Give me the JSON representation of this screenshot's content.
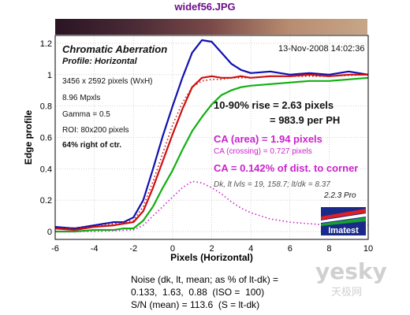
{
  "file_title": "widef56.JPG",
  "chart_data": {
    "type": "line",
    "title": "Chromatic Aberration",
    "subtitle": "Profile: Horizontal",
    "timestamp": "13-Nov-2008 14:02:36",
    "xlabel": "Pixels (Horizontal)",
    "ylabel": "Edge profile",
    "xlim": [
      -6,
      10
    ],
    "ylim": [
      -0.05,
      1.25
    ],
    "xticks": [
      -6,
      -4,
      -2,
      0,
      2,
      4,
      6,
      8,
      10
    ],
    "yticks": [
      0,
      0.2,
      0.4,
      0.6,
      0.8,
      1,
      1.2
    ],
    "xtick_labels": [
      "-6",
      "-4",
      "-2",
      "0",
      "2",
      "4",
      "6",
      "8",
      "10"
    ],
    "ytick_labels": [
      "0",
      "0.2",
      "0.4",
      "0.6",
      "0.8",
      "1",
      "1.2"
    ],
    "grid": true,
    "series": [
      {
        "color": "#1010b0",
        "style": "solid",
        "x": [
          -6,
          -5,
          -4,
          -3,
          -2.5,
          -2,
          -1.5,
          -1,
          -0.5,
          0,
          0.5,
          1,
          1.5,
          2,
          2.5,
          3,
          3.5,
          4,
          5,
          6,
          7,
          8,
          9,
          10
        ],
        "y": [
          0.03,
          0.02,
          0.04,
          0.06,
          0.06,
          0.09,
          0.2,
          0.4,
          0.61,
          0.8,
          0.98,
          1.14,
          1.22,
          1.21,
          1.14,
          1.07,
          1.03,
          1.01,
          1.02,
          1.0,
          1.01,
          1.0,
          1.02,
          1.0
        ]
      },
      {
        "color": "#cc1010",
        "style": "solid",
        "x": [
          -6,
          -5,
          -4,
          -3,
          -2.5,
          -2,
          -1.5,
          -1,
          -0.5,
          0,
          0.5,
          1,
          1.5,
          2,
          2.5,
          3,
          3.5,
          4,
          5,
          6,
          7,
          8,
          9,
          10
        ],
        "y": [
          0.02,
          0.01,
          0.03,
          0.04,
          0.05,
          0.06,
          0.13,
          0.28,
          0.45,
          0.62,
          0.78,
          0.92,
          0.98,
          0.99,
          0.98,
          0.98,
          0.99,
          0.98,
          0.99,
          0.99,
          1.0,
          0.99,
          1.0,
          1.0
        ]
      },
      {
        "color": "#10b010",
        "style": "solid",
        "x": [
          -6,
          -5,
          -4,
          -3,
          -2.5,
          -2,
          -1.5,
          -1,
          -0.5,
          0,
          0.5,
          1,
          1.5,
          2,
          2.5,
          3,
          3.5,
          4,
          5,
          6,
          7,
          8,
          9,
          10
        ],
        "y": [
          0.0,
          0.0,
          0.01,
          0.01,
          0.02,
          0.02,
          0.07,
          0.16,
          0.28,
          0.39,
          0.52,
          0.64,
          0.73,
          0.81,
          0.87,
          0.9,
          0.92,
          0.93,
          0.94,
          0.95,
          0.96,
          0.96,
          0.97,
          0.98
        ]
      },
      {
        "color": "#cc1010",
        "style": "dotted",
        "x": [
          -6,
          -4,
          -2,
          -1.5,
          -1,
          -0.5,
          0,
          0.5,
          1,
          1.5,
          2,
          2.5,
          3,
          3.5,
          4,
          5,
          6,
          8,
          10
        ],
        "y": [
          0.02,
          0.03,
          0.07,
          0.16,
          0.32,
          0.5,
          0.68,
          0.82,
          0.92,
          0.96,
          0.97,
          0.97,
          0.98,
          0.98,
          0.98,
          0.99,
          0.99,
          0.99,
          1.0
        ]
      },
      {
        "color": "#cc22cc",
        "style": "dotted",
        "x": [
          -6,
          -4,
          -2,
          -1.5,
          -1,
          -0.5,
          0,
          0.5,
          1,
          1.5,
          2,
          2.5,
          3,
          3.5,
          4,
          5,
          6,
          7,
          8,
          9,
          10
        ],
        "y": [
          0.0,
          0.0,
          0.01,
          0.04,
          0.1,
          0.16,
          0.22,
          0.28,
          0.32,
          0.31,
          0.28,
          0.24,
          0.19,
          0.15,
          0.12,
          0.08,
          0.06,
          0.05,
          0.04,
          0.04,
          0.04
        ]
      }
    ],
    "info_lines": [
      "3456 x 2592 pixels (WxH)",
      "8.96 Mpxls",
      "Gamma = 0.5",
      "ROI: 80x200 pixels",
      "64% right of ctr."
    ],
    "rise_text": "10-90% rise = 2.63 pixels",
    "per_ph_text": "= 983.9 per PH",
    "ca_area_text": "CA (area) = 1.94 pixels",
    "ca_crossing_text": "CA (crossing) = 0.727 pixels",
    "ca_pct_text": "CA = 0.142% of dist. to corner",
    "dk_text": "Dk, lt lvls = 19, 158.7;  lt/dk = 8.37",
    "version_text": "2.2.3 Pro",
    "logo_text": "Imatest"
  },
  "noise_block": {
    "line1": "Noise (dk, lt, mean; as % of lt-dk) =",
    "line2": "0.133,  1.63,  0.88  (ISO =  100)",
    "line3": "S/N (mean) = 113.6  (S = lt-dk)"
  },
  "watermark": {
    "main": "yesky",
    "sub": "天极网"
  },
  "colors": {
    "title_purple": "#6b0f8a",
    "ca_magenta": "#cc22cc",
    "text_dark": "#111111"
  }
}
